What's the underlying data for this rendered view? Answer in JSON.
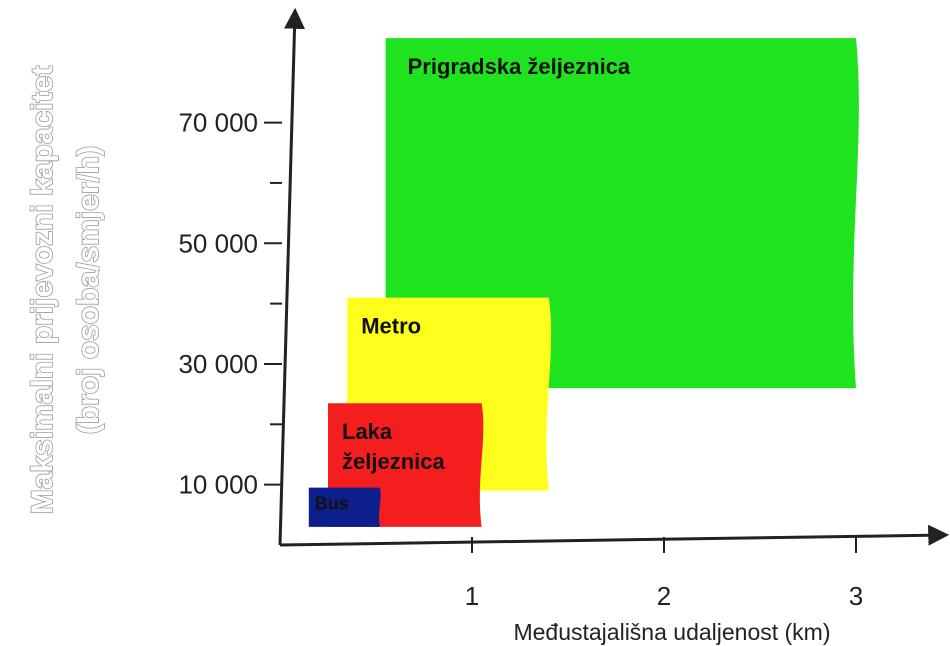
{
  "chart_data": {
    "type": "area",
    "title": "",
    "xlabel": "Međustajališna udaljenost (km)",
    "ylabel_line1": "Maksimalni prijevozni kapacitet",
    "ylabel_line2": "(broj osoba/smjer/h)",
    "xlim": [
      0,
      3.4
    ],
    "ylim": [
      0,
      87000
    ],
    "x_ticks": [
      {
        "value": 1,
        "label": "1"
      },
      {
        "value": 2,
        "label": "2"
      },
      {
        "value": 3,
        "label": "3"
      }
    ],
    "y_ticks": [
      {
        "value": 10000,
        "label": "10 000"
      },
      {
        "value": 30000,
        "label": "30 000"
      },
      {
        "value": 50000,
        "label": "50 000"
      },
      {
        "value": 70000,
        "label": "70 000"
      }
    ],
    "y_minor_ticks": [
      20000,
      40000,
      60000
    ],
    "regions": [
      {
        "name": "Prigradska željeznica",
        "label_lines": [
          "Prigradska željeznica"
        ],
        "x_range": [
          0.55,
          3.0
        ],
        "y_range": [
          26000,
          84000
        ],
        "color": "#1ee31e",
        "label_color": "#111111"
      },
      {
        "name": "Metro",
        "label_lines": [
          "Metro"
        ],
        "x_range": [
          0.35,
          1.4
        ],
        "y_range": [
          9000,
          41000
        ],
        "color": "#ffff1e",
        "label_color": "#111111"
      },
      {
        "name": "Laka željeznica",
        "label_lines": [
          "Laka",
          "željeznica"
        ],
        "x_range": [
          0.25,
          1.05
        ],
        "y_range": [
          3000,
          23500
        ],
        "color": "#f51e1e",
        "label_color": "#111111"
      },
      {
        "name": "Bus",
        "label_lines": [
          "Bus"
        ],
        "x_range": [
          0.15,
          0.52
        ],
        "y_range": [
          3000,
          9500
        ],
        "color": "#0d1f8a",
        "label_color": "#f2e61e"
      }
    ]
  }
}
